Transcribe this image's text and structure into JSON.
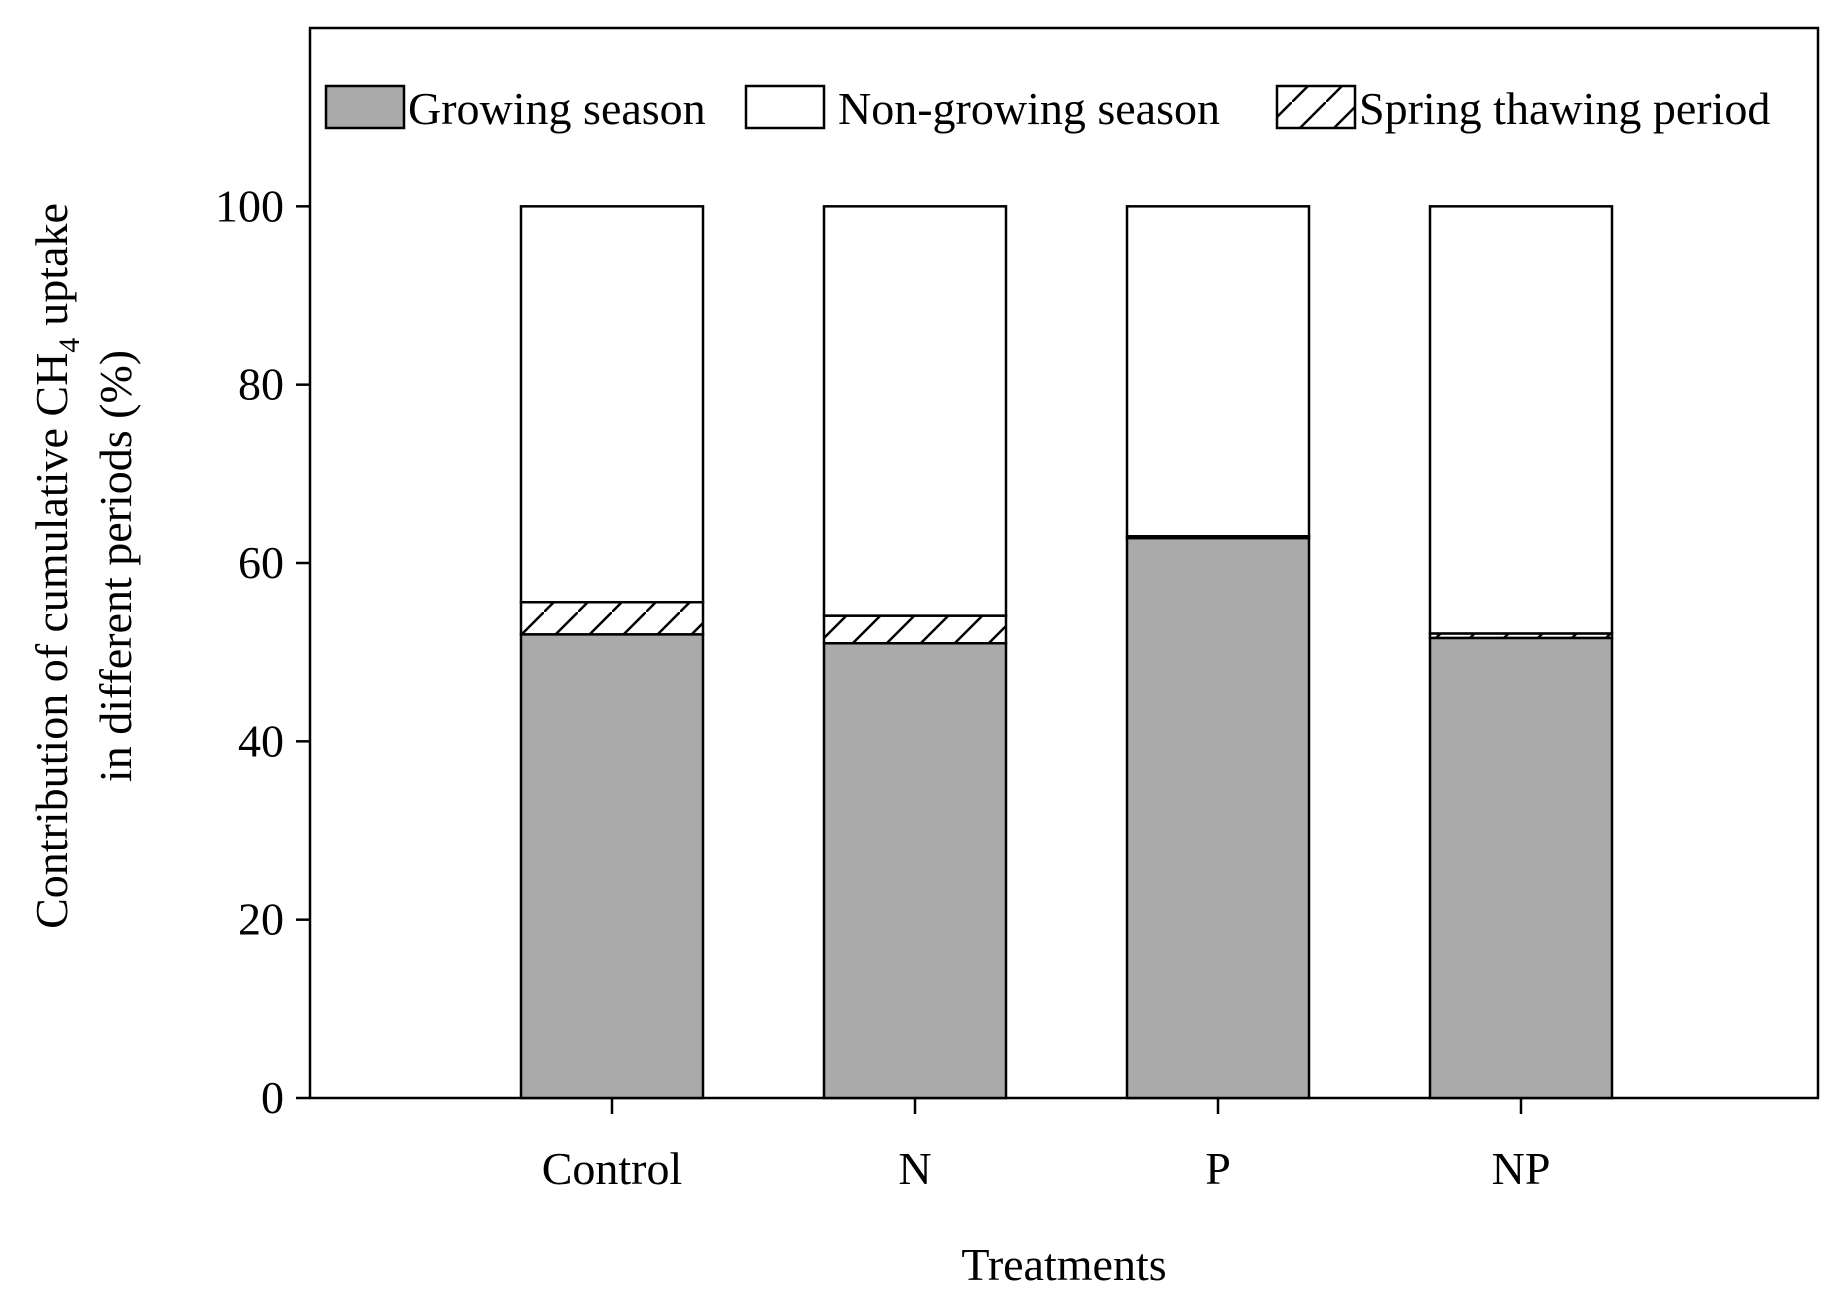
{
  "chart_data": {
    "type": "bar",
    "stacked": true,
    "title": "",
    "xlabel": "Treatments",
    "ylabel": {
      "line1_prefix": "Contribution of cumulative CH",
      "line1_subscript": "4",
      "line1_suffix": "uptake",
      "line2": "in different periods (%)"
    },
    "ylim": [
      0,
      120
    ],
    "yticks": [
      "0",
      "20",
      "40",
      "60",
      "80",
      "100"
    ],
    "ytick_values": [
      0,
      20,
      40,
      60,
      80,
      100
    ],
    "categories": [
      "Control",
      "N",
      "P",
      "NP"
    ],
    "series": [
      {
        "name": "Growing season",
        "fill": "#aaaaaa",
        "pattern": "solid",
        "values": [
          52,
          51,
          62.8,
          51.6
        ]
      },
      {
        "name": "Spring thawing period",
        "fill": "#ffffff",
        "pattern": "hatch",
        "values": [
          3.6,
          3.1,
          0.2,
          0.5
        ]
      },
      {
        "name": "Non-growing season",
        "fill": "#ffffff",
        "pattern": "solid",
        "values": [
          44.4,
          45.9,
          37.0,
          47.9
        ]
      }
    ],
    "legend": {
      "placement": "top",
      "order": [
        "Growing season",
        "Non-growing season",
        "Spring thawing period"
      ]
    },
    "grid": false
  }
}
